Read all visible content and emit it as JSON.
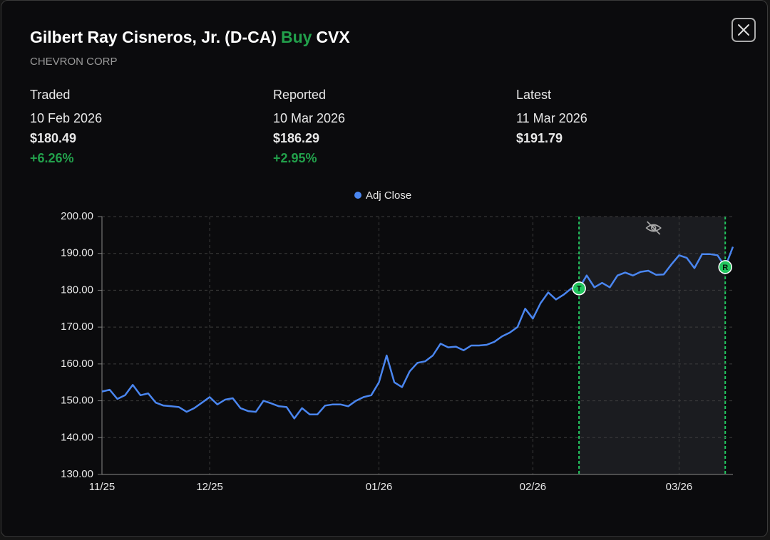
{
  "header": {
    "name": "Gilbert Ray Cisneros, Jr.",
    "party": "(D-CA)",
    "action": "Buy",
    "ticker": "CVX",
    "company": "CHEVRON CORP"
  },
  "stats": [
    {
      "label": "Traded",
      "date": "10 Feb 2026",
      "price": "$180.49",
      "change": "+6.26%"
    },
    {
      "label": "Reported",
      "date": "10 Mar 2026",
      "price": "$186.29",
      "change": "+2.95%"
    },
    {
      "label": "Latest",
      "date": "11 Mar 2026",
      "price": "$191.79"
    }
  ],
  "chart_data": {
    "type": "line",
    "categories": [
      "11/25",
      null,
      null,
      null,
      null,
      null,
      null,
      null,
      null,
      null,
      null,
      null,
      null,
      null,
      "12/25",
      null,
      null,
      null,
      null,
      null,
      null,
      null,
      null,
      null,
      null,
      null,
      null,
      null,
      null,
      null,
      null,
      null,
      null,
      null,
      null,
      null,
      "01/26",
      null,
      null,
      null,
      null,
      null,
      null,
      null,
      null,
      null,
      null,
      null,
      null,
      null,
      null,
      null,
      null,
      null,
      null,
      null,
      "02/26",
      null,
      null,
      null,
      null,
      null,
      null,
      null,
      null,
      null,
      null,
      null,
      null,
      null,
      null,
      null,
      null,
      null,
      null,
      "03/26",
      null,
      null,
      null,
      null,
      null,
      null,
      null
    ],
    "series": [
      {
        "name": "Adj Close",
        "color": "#4a86f0",
        "values": [
          152.5,
          153,
          150.5,
          151.5,
          154.3,
          151.5,
          152,
          149.5,
          148.7,
          148.5,
          148.3,
          147,
          148,
          149.5,
          151,
          149,
          150.3,
          150.7,
          148,
          147.2,
          147,
          150,
          149.3,
          148.5,
          148.3,
          145.2,
          148,
          146.3,
          146.3,
          148.7,
          149,
          149,
          148.5,
          150,
          151,
          151.5,
          155,
          162.3,
          155,
          153.7,
          158,
          160.3,
          160.7,
          162.3,
          165.5,
          164.5,
          164.7,
          163.7,
          165,
          165,
          165.2,
          166,
          167.5,
          168.5,
          170,
          175,
          172.3,
          176.5,
          179.4,
          177.5,
          178.8,
          180.5,
          180.5,
          184,
          180.8,
          182,
          180.8,
          184,
          184.8,
          184,
          185,
          185.3,
          184.2,
          184.3,
          187,
          189.5,
          188.8,
          186,
          189.8,
          189.8,
          189.5,
          186.3,
          191.8
        ]
      }
    ],
    "ylim": [
      130,
      200
    ],
    "yticks": [
      {
        "value": 130,
        "label": "130.00"
      },
      {
        "value": 140,
        "label": "140.00"
      },
      {
        "value": 150,
        "label": "150.00"
      },
      {
        "value": 160,
        "label": "160.00"
      },
      {
        "value": 170,
        "label": "170.00"
      },
      {
        "value": 180,
        "label": "180.00"
      },
      {
        "value": 190,
        "label": "190.00"
      },
      {
        "value": 200,
        "label": "200.00"
      }
    ],
    "grid": true,
    "markers": [
      {
        "label": "T",
        "index": 62,
        "color": "#22c55e"
      },
      {
        "label": "R",
        "index": 81,
        "color": "#22c55e"
      }
    ]
  }
}
